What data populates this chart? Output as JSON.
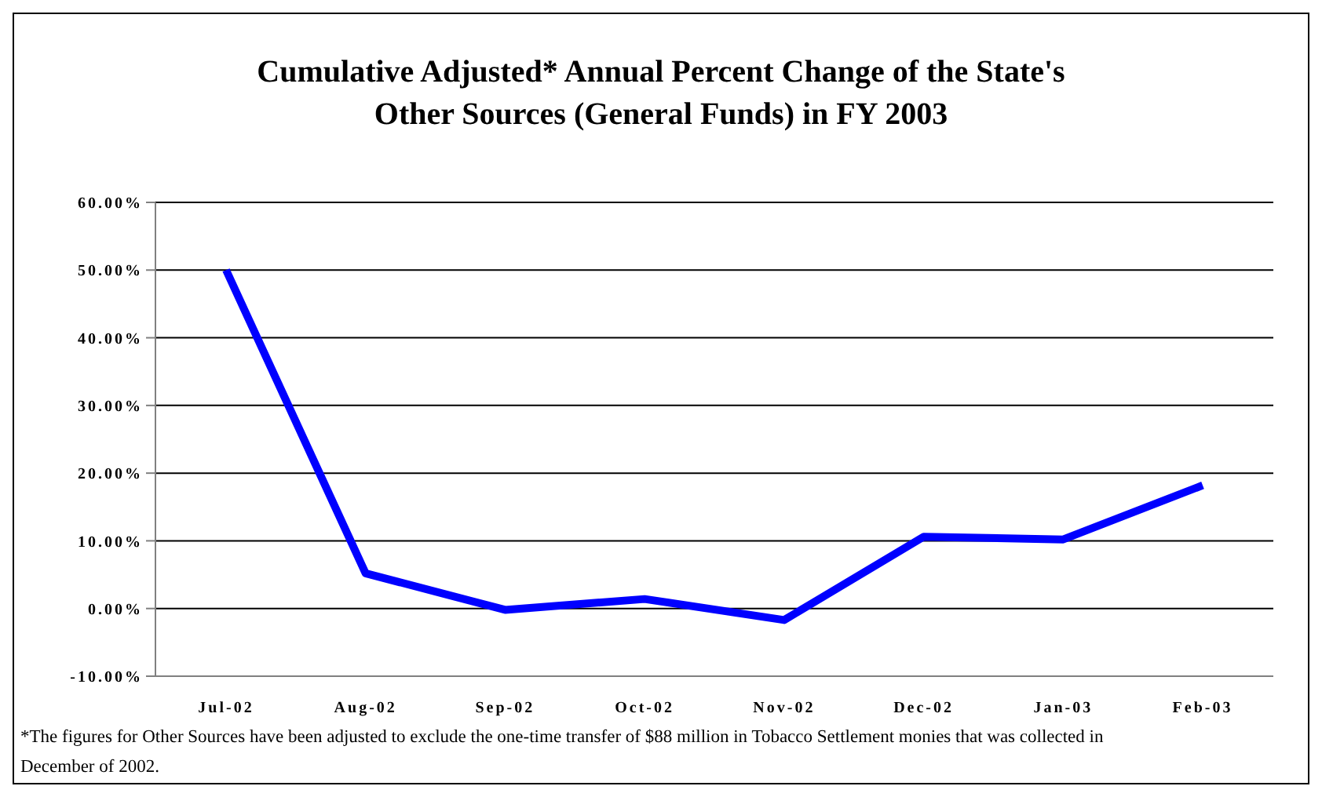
{
  "chart_data": {
    "type": "line",
    "title": "Cumulative Adjusted* Annual Percent Change of the State's Other Sources (General Funds) in FY 2003",
    "categories": [
      "Jul-02",
      "Aug-02",
      "Sep-02",
      "Oct-02",
      "Nov-02",
      "Dec-02",
      "Jan-03",
      "Feb-03"
    ],
    "series": [
      {
        "color": "#0000ff",
        "values": [
          50,
          5.2,
          -0.2,
          1.4,
          -1.7,
          10.6,
          10.2,
          18.2
        ]
      }
    ],
    "ylim": [
      -10,
      60
    ],
    "yticks": [
      {
        "value": -10,
        "label": "-10.00%"
      },
      {
        "value": 0,
        "label": "0.00%"
      },
      {
        "value": 10,
        "label": "10.00%"
      },
      {
        "value": 20,
        "label": "20.00%"
      },
      {
        "value": 30,
        "label": "30.00%"
      },
      {
        "value": 40,
        "label": "40.00%"
      },
      {
        "value": 50,
        "label": "50.00%"
      },
      {
        "value": 60,
        "label": "60.00%"
      }
    ],
    "grid": "y",
    "marker": "none",
    "line_style": "solid",
    "annotations": [
      "*The figures for Other Sources have been adjusted to exclude the one-time transfer of $88 million in Tobacco Settlement monies that was collected in December of 2002."
    ]
  }
}
